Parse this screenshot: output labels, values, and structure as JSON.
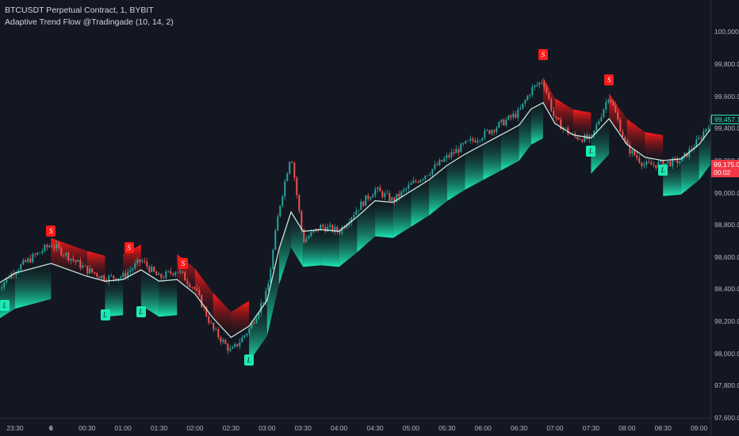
{
  "legend": {
    "symbol_line": "BTCUSDT Perpetual Contract, 1, BYBIT",
    "indicator_line": "Adaptive Trend Flow @Tradingade (10, 14, 2)"
  },
  "colors": {
    "background": "#131722",
    "bull": "#1de9b6",
    "bear": "#ff1b1b",
    "candle_up": "#26a69a",
    "candle_down": "#ef5350",
    "trend_line": "#d8fff2"
  },
  "price_axis": {
    "labels": [
      "100,000.0",
      "99,800.0",
      "99,600.0",
      "99,400.0",
      "99,200.0",
      "99,000.0",
      "98,800.0",
      "98,600.0",
      "98,400.0",
      "98,200.0",
      "98,000.0",
      "97,800.0",
      "97,600.0"
    ],
    "current_price": "99,457.1",
    "last_price": "99,175.0",
    "countdown": "00:02"
  },
  "time_axis": {
    "labels": [
      "23:30",
      "6",
      "00:30",
      "01:00",
      "01:30",
      "02:00",
      "02:30",
      "03:00",
      "03:30",
      "04:00",
      "04:30",
      "05:00",
      "05:30",
      "06:00",
      "06:30",
      "07:00",
      "07:30",
      "08:00",
      "08:30",
      "09:00"
    ]
  },
  "chart_data": {
    "type": "line",
    "title": "BTCUSDT Perpetual Contract, 1, BYBIT",
    "x": [
      "23:15",
      "23:30",
      "00:00",
      "00:30",
      "00:45",
      "01:00",
      "01:15",
      "01:30",
      "01:45",
      "02:00",
      "02:15",
      "02:30",
      "02:45",
      "03:00",
      "03:10",
      "03:20",
      "03:30",
      "03:45",
      "04:00",
      "04:15",
      "04:30",
      "04:45",
      "05:00",
      "05:15",
      "05:30",
      "05:45",
      "06:00",
      "06:15",
      "06:30",
      "06:40",
      "06:50",
      "07:00",
      "07:15",
      "07:30",
      "07:45",
      "08:00",
      "08:15",
      "08:30",
      "08:45",
      "09:00",
      "09:10"
    ],
    "series": [
      {
        "name": "Price",
        "values": [
          98400,
          98520,
          98680,
          98520,
          98470,
          98480,
          98580,
          98470,
          98520,
          98400,
          98150,
          98010,
          98150,
          98380,
          98900,
          99250,
          98700,
          98790,
          98760,
          98900,
          99020,
          98950,
          99050,
          99130,
          99220,
          99300,
          99360,
          99430,
          99500,
          99640,
          99700,
          99450,
          99350,
          99330,
          99610,
          99280,
          99170,
          99180,
          99200,
          99330,
          99457
        ]
      },
      {
        "name": "Trend",
        "values": [
          98430,
          98500,
          98560,
          98480,
          98450,
          98460,
          98520,
          98450,
          98460,
          98370,
          98220,
          98100,
          98170,
          98330,
          98650,
          98880,
          98760,
          98770,
          98760,
          98850,
          98950,
          98940,
          99010,
          99080,
          99170,
          99240,
          99300,
          99360,
          99420,
          99520,
          99560,
          99430,
          99360,
          99340,
          99460,
          99300,
          99220,
          99200,
          99210,
          99300,
          99400
        ]
      }
    ],
    "signals": [
      {
        "label": "L",
        "x": "23:15",
        "value": 98300
      },
      {
        "label": "S",
        "x": "00:00",
        "value": 98760
      },
      {
        "label": "L",
        "x": "00:45",
        "value": 98240
      },
      {
        "label": "S",
        "x": "01:05",
        "value": 98660
      },
      {
        "label": "L",
        "x": "01:15",
        "value": 98260
      },
      {
        "label": "S",
        "x": "01:50",
        "value": 98560
      },
      {
        "label": "L",
        "x": "02:45",
        "value": 97960
      },
      {
        "label": "S",
        "x": "06:50",
        "value": 99860
      },
      {
        "label": "L",
        "x": "07:30",
        "value": 99260
      },
      {
        "label": "S",
        "x": "07:45",
        "value": 99700
      },
      {
        "label": "L",
        "x": "08:30",
        "value": 99140
      }
    ],
    "ylim": [
      97600,
      100100
    ],
    "grid": false,
    "legend": "top-left"
  }
}
